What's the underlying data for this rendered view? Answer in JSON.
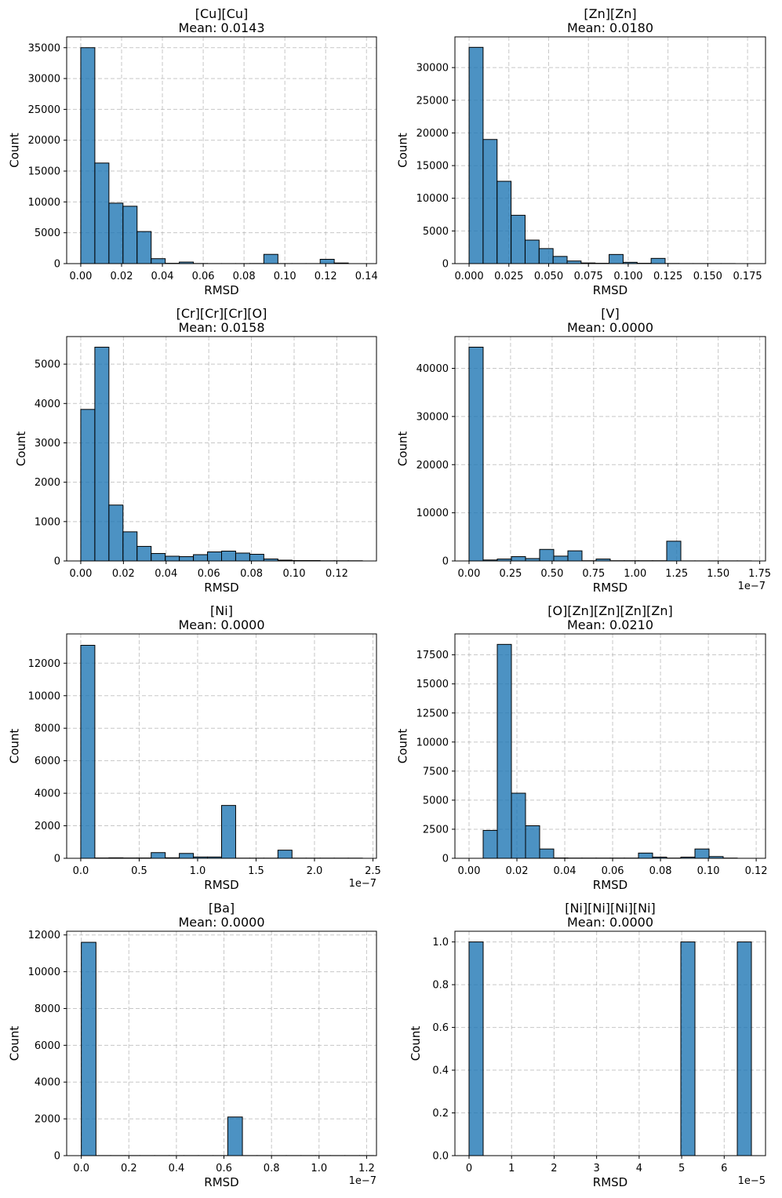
{
  "chart_data": [
    {
      "type": "bar",
      "title_line1": "[Cu][Cu]",
      "title_line2": "Mean: 0.0143",
      "xlabel": "RMSD",
      "ylabel": "Count",
      "xlim": [
        -0.0069,
        0.1449
      ],
      "ylim": [
        0,
        36750
      ],
      "x_ticks": [
        0,
        0.02,
        0.04,
        0.06,
        0.08,
        0.1,
        0.12,
        0.14
      ],
      "x_tick_labels": [
        "0.00",
        "0.02",
        "0.04",
        "0.06",
        "0.08",
        "0.10",
        "0.12",
        "0.14"
      ],
      "y_ticks": [
        0,
        5000,
        10000,
        15000,
        20000,
        25000,
        30000,
        35000
      ],
      "y_tick_labels": [
        "0",
        "5000",
        "10000",
        "15000",
        "20000",
        "25000",
        "30000",
        "35000"
      ],
      "offset": "",
      "bin_start": 0.0,
      "bin_width": 0.0069,
      "values": [
        35000,
        16300,
        9800,
        9300,
        5200,
        800,
        50,
        250,
        20,
        10,
        10,
        10,
        20,
        1500,
        10,
        10,
        10,
        700,
        100,
        0
      ]
    },
    {
      "type": "bar",
      "title_line1": "[Zn][Zn]",
      "title_line2": "Mean: 0.0180",
      "xlabel": "RMSD",
      "ylabel": "Count",
      "xlim": [
        -0.0089,
        0.1863
      ],
      "ylim": [
        0,
        34700
      ],
      "x_ticks": [
        0,
        0.025,
        0.05,
        0.075,
        0.1,
        0.125,
        0.15,
        0.175
      ],
      "x_tick_labels": [
        "0.000",
        "0.025",
        "0.050",
        "0.075",
        "0.100",
        "0.125",
        "0.150",
        "0.175"
      ],
      "y_ticks": [
        0,
        5000,
        10000,
        15000,
        20000,
        25000,
        30000
      ],
      "y_tick_labels": [
        "0",
        "5000",
        "10000",
        "15000",
        "20000",
        "25000",
        "30000"
      ],
      "offset": "",
      "bin_start": 0.0,
      "bin_width": 0.0088,
      "values": [
        33100,
        19000,
        12600,
        7400,
        3600,
        2300,
        1100,
        400,
        100,
        50,
        1400,
        200,
        50,
        800,
        20,
        10,
        10,
        10,
        10,
        0
      ]
    },
    {
      "type": "bar",
      "title_line1": "[Cr][Cr][Cr][O]",
      "title_line2": "Mean: 0.0158",
      "xlabel": "RMSD",
      "ylabel": "Count",
      "xlim": [
        -0.0066,
        0.1386
      ],
      "ylim": [
        0,
        5700
      ],
      "x_ticks": [
        0,
        0.02,
        0.04,
        0.06,
        0.08,
        0.1,
        0.12
      ],
      "x_tick_labels": [
        "0.00",
        "0.02",
        "0.04",
        "0.06",
        "0.08",
        "0.10",
        "0.12"
      ],
      "y_ticks": [
        0,
        1000,
        2000,
        3000,
        4000,
        5000
      ],
      "y_tick_labels": [
        "0",
        "1000",
        "2000",
        "3000",
        "4000",
        "5000"
      ],
      "offset": "",
      "bin_start": 0.0,
      "bin_width": 0.0066,
      "values": [
        3850,
        5430,
        1420,
        740,
        370,
        190,
        120,
        110,
        160,
        230,
        250,
        200,
        170,
        50,
        20,
        10,
        10,
        5,
        5,
        5
      ]
    },
    {
      "type": "bar",
      "title_line1": "[V]",
      "title_line2": "Mean: 0.0000",
      "xlabel": "RMSD",
      "ylabel": "Count",
      "xlim": [
        -0.0849,
        1.7849
      ],
      "ylim": [
        0,
        46600
      ],
      "x_ticks": [
        0,
        0.25,
        0.5,
        0.75,
        1.0,
        1.25,
        1.5,
        1.75
      ],
      "x_tick_labels": [
        "0.00",
        "0.25",
        "0.50",
        "0.75",
        "1.00",
        "1.25",
        "1.50",
        "1.75"
      ],
      "y_ticks": [
        0,
        10000,
        20000,
        30000,
        40000
      ],
      "y_tick_labels": [
        "0",
        "10000",
        "20000",
        "30000",
        "40000"
      ],
      "offset": "1e−7",
      "bin_start": 0.0,
      "bin_width": 0.085,
      "values": [
        44400,
        200,
        400,
        900,
        500,
        2400,
        1000,
        2100,
        50,
        400,
        50,
        50,
        50,
        50,
        4100,
        20,
        20,
        20,
        20,
        20
      ]
    },
    {
      "type": "bar",
      "title_line1": "[Ni]",
      "title_line2": "Mean: 0.0000",
      "xlabel": "RMSD",
      "ylabel": "Count",
      "xlim": [
        -0.1205,
        2.5305
      ],
      "ylim": [
        0,
        13800
      ],
      "x_ticks": [
        0,
        0.5,
        1.0,
        1.5,
        2.0,
        2.5
      ],
      "x_tick_labels": [
        "0.0",
        "0.5",
        "1.0",
        "1.5",
        "2.0",
        "2.5"
      ],
      "y_ticks": [
        0,
        2000,
        4000,
        6000,
        8000,
        10000,
        12000
      ],
      "y_tick_labels": [
        "0",
        "2000",
        "4000",
        "6000",
        "8000",
        "10000",
        "12000"
      ],
      "offset": "1e−7",
      "bin_start": 0.0,
      "bin_width": 0.1205,
      "values": [
        13100,
        20,
        30,
        20,
        20,
        350,
        30,
        300,
        80,
        80,
        3250,
        10,
        10,
        10,
        500,
        10,
        10,
        10,
        10,
        10
      ]
    },
    {
      "type": "bar",
      "title_line1": "[O][Zn][Zn][Zn][Zn]",
      "title_line2": "Mean: 0.0210",
      "xlabel": "RMSD",
      "ylabel": "Count",
      "xlim": [
        -0.0059,
        0.1239
      ],
      "ylim": [
        0,
        19300
      ],
      "x_ticks": [
        0,
        0.02,
        0.04,
        0.06,
        0.08,
        0.1,
        0.12
      ],
      "x_tick_labels": [
        "0.00",
        "0.02",
        "0.04",
        "0.06",
        "0.08",
        "0.10",
        "0.12"
      ],
      "y_ticks": [
        0,
        2500,
        5000,
        7500,
        10000,
        12500,
        15000,
        17500
      ],
      "y_tick_labels": [
        "0",
        "2500",
        "5000",
        "7500",
        "10000",
        "12500",
        "15000",
        "17500"
      ],
      "offset": "",
      "bin_start": 0.0059,
      "bin_width": 0.0059,
      "values": [
        2400,
        18400,
        5600,
        2800,
        800,
        30,
        20,
        20,
        20,
        20,
        20,
        450,
        100,
        20,
        100,
        800,
        150,
        20,
        0
      ]
    },
    {
      "type": "bar",
      "title_line1": "[Ba]",
      "title_line2": "Mean: 0.0000",
      "xlabel": "RMSD",
      "ylabel": "Count",
      "xlim": [
        -0.0616,
        1.2416
      ],
      "ylim": [
        0,
        12200
      ],
      "x_ticks": [
        0,
        0.2,
        0.4,
        0.6,
        0.8,
        1.0,
        1.2
      ],
      "x_tick_labels": [
        "0.0",
        "0.2",
        "0.4",
        "0.6",
        "0.8",
        "1.0",
        "1.2"
      ],
      "y_ticks": [
        0,
        2000,
        4000,
        6000,
        8000,
        10000,
        12000
      ],
      "y_tick_labels": [
        "0",
        "2000",
        "4000",
        "6000",
        "8000",
        "10000",
        "12000"
      ],
      "offset": "1e−7",
      "bin_start": 0.0,
      "bin_width": 0.0616,
      "values": [
        11600,
        5,
        5,
        5,
        5,
        5,
        5,
        5,
        5,
        5,
        2100,
        5,
        5,
        5,
        5,
        5,
        5,
        5,
        5,
        5
      ]
    },
    {
      "type": "bar",
      "title_line1": "[Ni][Ni][Ni][Ni]",
      "title_line2": "Mean: 0.0000",
      "xlabel": "RMSD",
      "ylabel": "Count",
      "xlim": [
        -0.332,
        6.972
      ],
      "ylim": [
        0,
        1.05
      ],
      "x_ticks": [
        0,
        1,
        2,
        3,
        4,
        5,
        6
      ],
      "x_tick_labels": [
        "0",
        "1",
        "2",
        "3",
        "4",
        "5",
        "6"
      ],
      "y_ticks": [
        0,
        0.2,
        0.4,
        0.6,
        0.8,
        1.0
      ],
      "y_tick_labels": [
        "0.0",
        "0.2",
        "0.4",
        "0.6",
        "0.8",
        "1.0"
      ],
      "offset": "1e−5",
      "bin_start": 0.0,
      "bin_width": 0.332,
      "values": [
        1,
        0,
        0,
        0,
        0,
        0,
        0,
        0,
        0,
        0,
        0,
        0,
        0,
        0,
        0,
        1,
        0,
        0,
        0,
        1
      ]
    }
  ]
}
